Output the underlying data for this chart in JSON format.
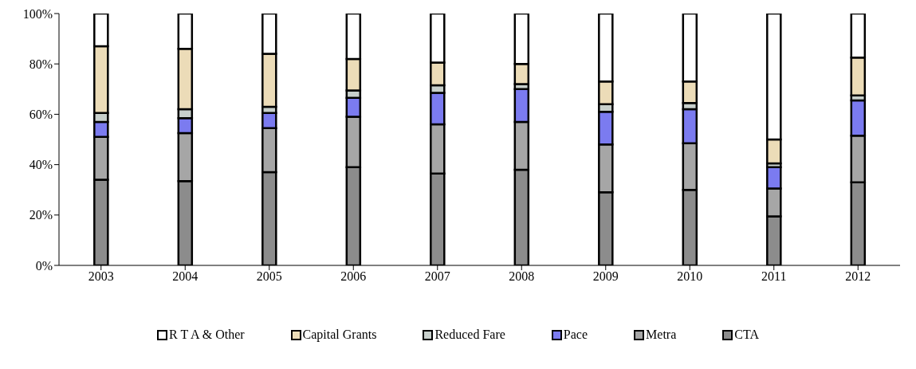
{
  "chart_data": {
    "type": "bar",
    "stacked": true,
    "legend": "bottom",
    "grid": false,
    "categories": [
      "2003",
      "2004",
      "2005",
      "2006",
      "2007",
      "2008",
      "2009",
      "2010",
      "2011",
      "2012"
    ],
    "ylim": [
      0,
      100
    ],
    "yticks": [
      {
        "value": 0,
        "label": "0%"
      },
      {
        "value": 20,
        "label": "20%"
      },
      {
        "value": 40,
        "label": "40%"
      },
      {
        "value": 60,
        "label": "60%"
      },
      {
        "value": 80,
        "label": "80%"
      },
      {
        "value": 100,
        "label": "100%"
      }
    ],
    "series": [
      {
        "name": "CTA",
        "color": "#8c8c8c",
        "values": [
          34,
          33.5,
          37,
          39,
          36.5,
          38,
          29,
          30,
          19.5,
          33
        ]
      },
      {
        "name": "Metra",
        "color": "#a6a6a6",
        "values": [
          17,
          19,
          17.5,
          20,
          19.5,
          19,
          19,
          18.5,
          11,
          18.5
        ]
      },
      {
        "name": "Pace",
        "color": "#7b7bf0",
        "values": [
          6,
          6,
          6,
          7.5,
          12.5,
          13,
          13,
          13.5,
          8.5,
          14
        ]
      },
      {
        "name": "Reduced Fare",
        "color": "#c8d0cc",
        "values": [
          3.5,
          3.5,
          2.5,
          3,
          3,
          2,
          3,
          2.5,
          1.5,
          2
        ]
      },
      {
        "name": "Capital Grants",
        "color": "#ecdcb8",
        "values": [
          26.5,
          24,
          21,
          12.5,
          9,
          8,
          9,
          8.5,
          9.5,
          15
        ]
      },
      {
        "name": "R T A & Other",
        "color": "#ffffff",
        "values": [
          13,
          14,
          16,
          18,
          19.5,
          20,
          27,
          27,
          50,
          17.5
        ]
      }
    ]
  }
}
